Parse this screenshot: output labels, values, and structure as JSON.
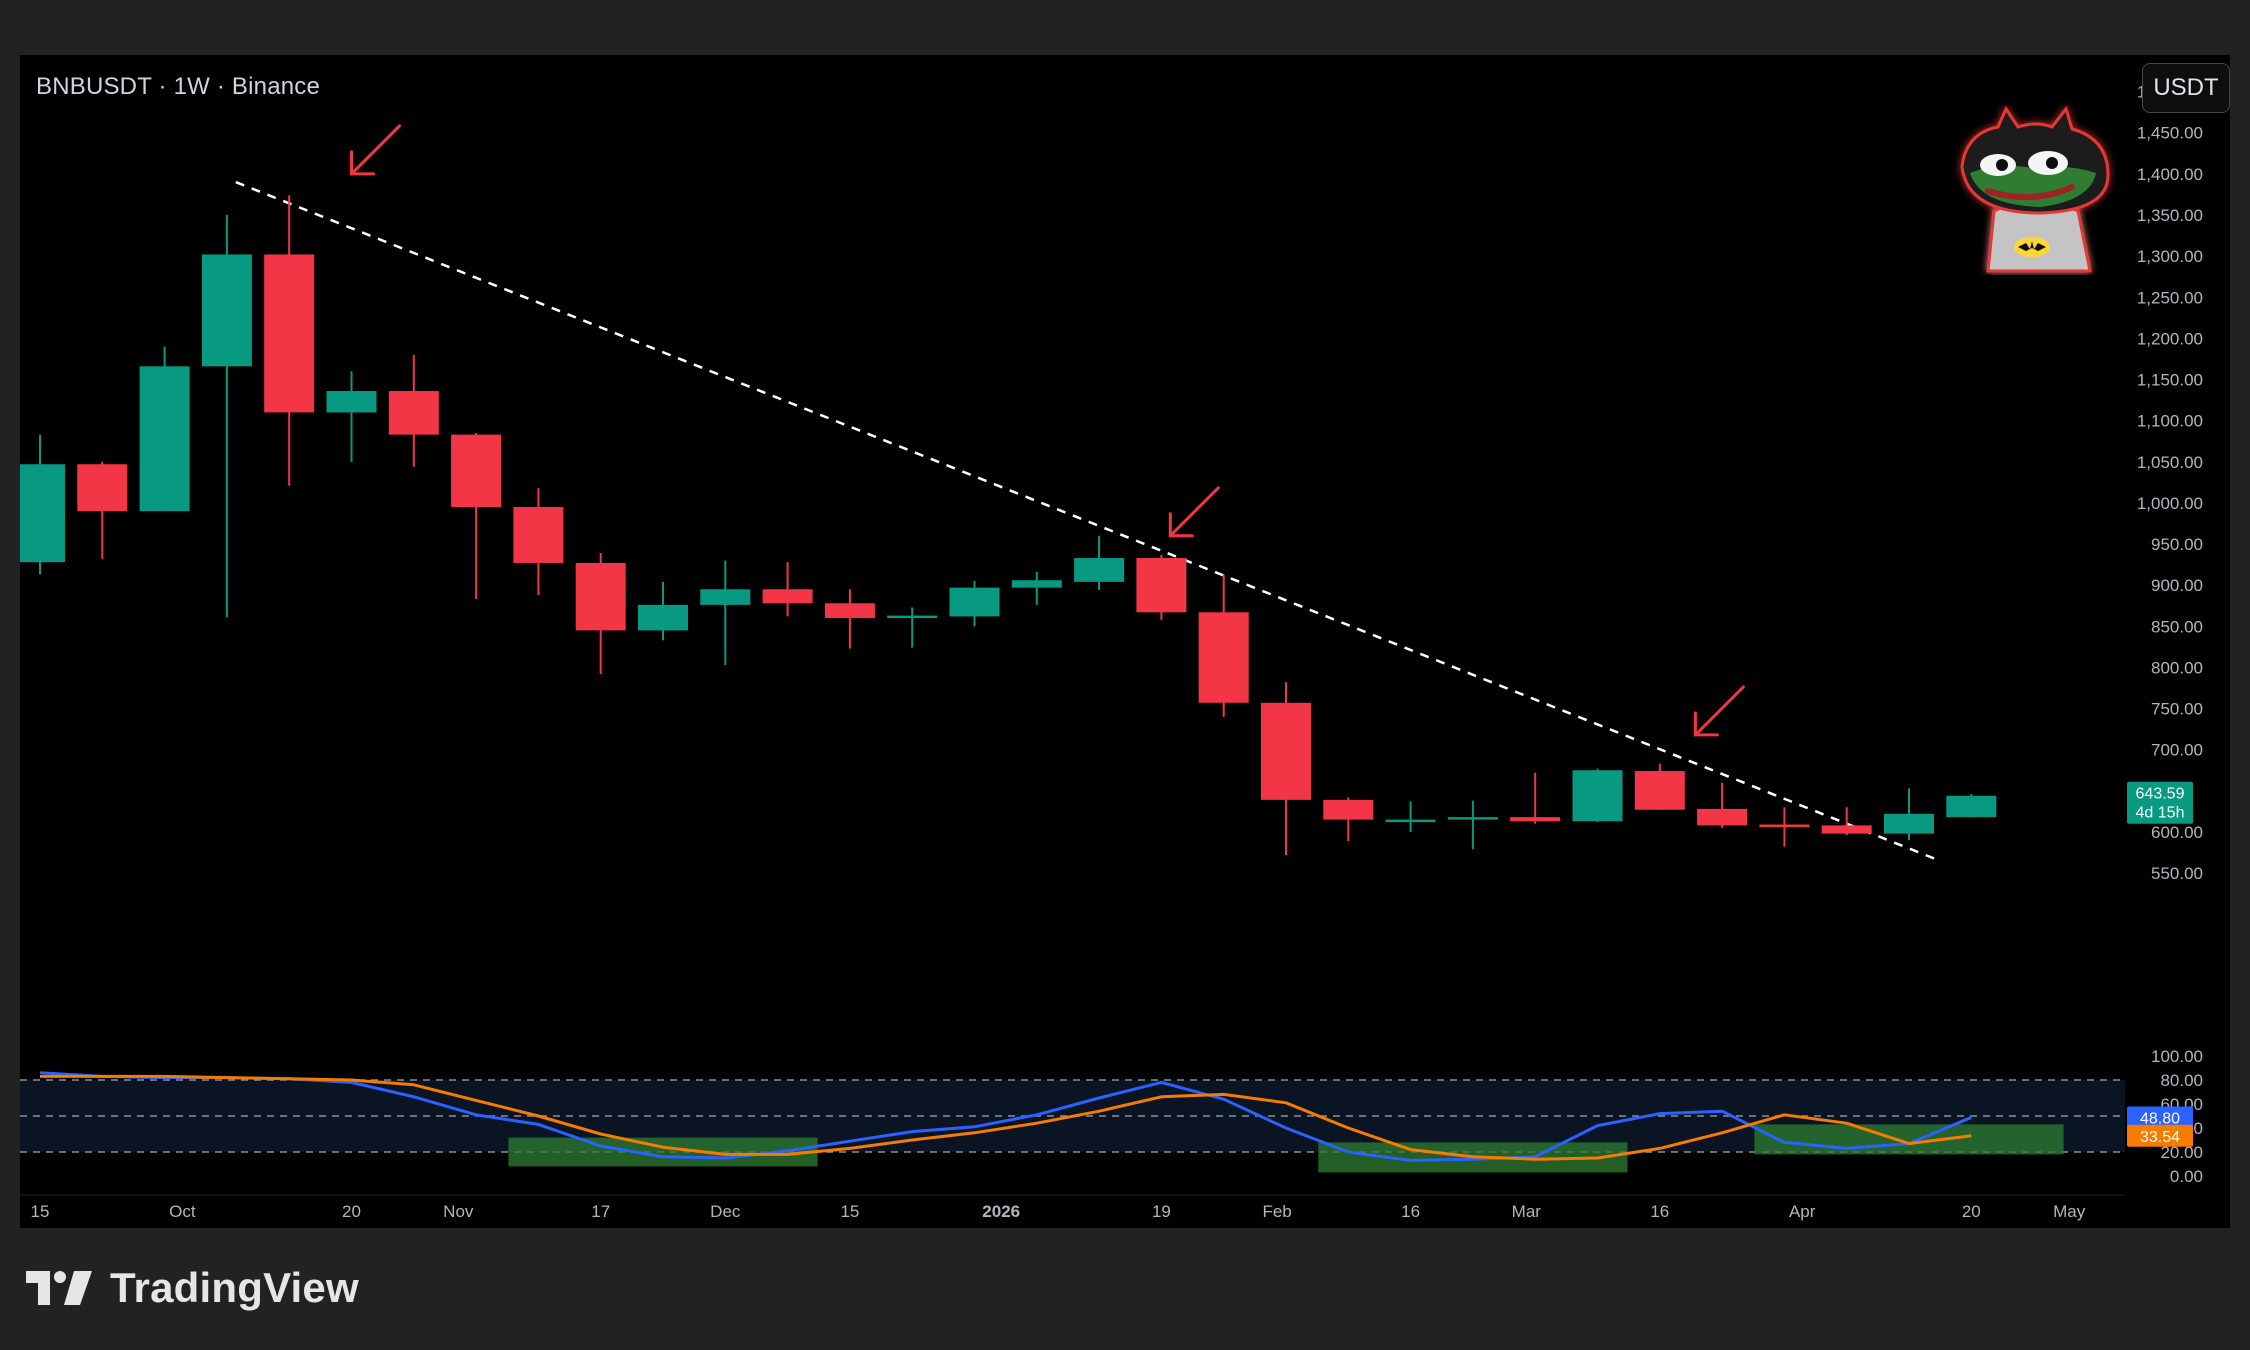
{
  "header": {
    "title": "BNBUSDT · 1W · Binance",
    "unit_button": "USDT"
  },
  "footer": {
    "brand": "TradingView"
  },
  "colors": {
    "up": "#089981",
    "down": "#f23645",
    "k_line": "#2962ff",
    "d_line": "#f57c00",
    "trendline": "#ffffff",
    "arrow": "#f23645",
    "highlight": "#2e7d32"
  },
  "icons": [
    "tradingview-logo-icon",
    "batman-pepe-avatar-icon",
    "red-arrow-icon"
  ],
  "chart_data": [
    {
      "type": "candlestick",
      "symbol": "BNBUSDT",
      "interval": "1W",
      "exchange": "Binance",
      "x_tick_labels": [
        "15",
        "Oct",
        "20",
        "Nov",
        "17",
        "Dec",
        "15",
        "2026",
        "19",
        "Feb",
        "16",
        "Mar",
        "16",
        "Apr",
        "20",
        "May"
      ],
      "y_tick_labels": [
        "1,500.00",
        "1,450.00",
        "1,400.00",
        "1,350.00",
        "1,300.00",
        "1,250.00",
        "1,200.00",
        "1,150.00",
        "1,100.00",
        "1,050.00",
        "1,000.00",
        "950.00",
        "900.00",
        "850.00",
        "800.00",
        "750.00",
        "700.00",
        "600.00",
        "550.00"
      ],
      "y_ticks": [
        1500,
        1450,
        1400,
        1350,
        1300,
        1250,
        1200,
        1150,
        1100,
        1050,
        1000,
        950,
        900,
        850,
        800,
        750,
        700,
        600,
        550
      ],
      "ylim": [
        520,
        1545
      ],
      "candles": [
        {
          "t": "2025-09-15",
          "o": 928,
          "h": 1083,
          "l": 913,
          "c": 1047
        },
        {
          "t": "2025-09-22",
          "o": 1047,
          "h": 1050,
          "l": 932,
          "c": 990
        },
        {
          "t": "2025-09-29",
          "o": 990,
          "h": 1190,
          "l": 990,
          "c": 1166
        },
        {
          "t": "2025-10-06",
          "o": 1166,
          "h": 1350,
          "l": 861,
          "c": 1302
        },
        {
          "t": "2025-10-13",
          "o": 1302,
          "h": 1374,
          "l": 1021,
          "c": 1110
        },
        {
          "t": "2025-10-20",
          "o": 1110,
          "h": 1160,
          "l": 1050,
          "c": 1136
        },
        {
          "t": "2025-10-27",
          "o": 1136,
          "h": 1180,
          "l": 1044,
          "c": 1083
        },
        {
          "t": "2025-11-03",
          "o": 1083,
          "h": 1085,
          "l": 883,
          "c": 995
        },
        {
          "t": "2025-11-10",
          "o": 995,
          "h": 1018,
          "l": 888,
          "c": 927
        },
        {
          "t": "2025-11-17",
          "o": 927,
          "h": 939,
          "l": 792,
          "c": 845
        },
        {
          "t": "2025-11-24",
          "o": 845,
          "h": 904,
          "l": 833,
          "c": 876
        },
        {
          "t": "2025-12-01",
          "o": 876,
          "h": 930,
          "l": 803,
          "c": 895
        },
        {
          "t": "2025-12-08",
          "o": 895,
          "h": 928,
          "l": 862,
          "c": 878
        },
        {
          "t": "2025-12-15",
          "o": 878,
          "h": 895,
          "l": 823,
          "c": 860
        },
        {
          "t": "2025-12-22",
          "o": 860,
          "h": 873,
          "l": 824,
          "c": 863
        },
        {
          "t": "2025-12-29",
          "o": 862,
          "h": 905,
          "l": 850,
          "c": 897
        },
        {
          "t": "2026-01-05",
          "o": 897,
          "h": 916,
          "l": 876,
          "c": 906
        },
        {
          "t": "2026-01-12",
          "o": 904,
          "h": 960,
          "l": 894,
          "c": 933
        },
        {
          "t": "2026-01-19",
          "o": 933,
          "h": 937,
          "l": 858,
          "c": 867
        },
        {
          "t": "2026-01-26",
          "o": 867,
          "h": 913,
          "l": 740,
          "c": 757
        },
        {
          "t": "2026-02-02",
          "o": 757,
          "h": 782,
          "l": 572,
          "c": 639
        },
        {
          "t": "2026-02-09",
          "o": 639,
          "h": 642,
          "l": 589,
          "c": 615
        },
        {
          "t": "2026-02-16",
          "o": 615,
          "h": 637,
          "l": 600,
          "c": 615
        },
        {
          "t": "2026-02-23",
          "o": 616,
          "h": 638,
          "l": 579,
          "c": 618
        },
        {
          "t": "2026-03-02",
          "o": 618,
          "h": 672,
          "l": 610,
          "c": 613
        },
        {
          "t": "2026-03-09",
          "o": 613,
          "h": 677,
          "l": 612,
          "c": 675
        },
        {
          "t": "2026-03-16",
          "o": 674,
          "h": 683,
          "l": 627,
          "c": 627
        },
        {
          "t": "2026-03-23",
          "o": 628,
          "h": 660,
          "l": 605,
          "c": 608
        },
        {
          "t": "2026-03-30",
          "o": 609,
          "h": 630,
          "l": 582,
          "c": 608
        },
        {
          "t": "2026-04-06",
          "o": 608,
          "h": 630,
          "l": 596,
          "c": 598
        },
        {
          "t": "2026-04-13",
          "o": 598,
          "h": 653,
          "l": 590,
          "c": 622
        },
        {
          "t": "2026-04-20",
          "o": 618,
          "h": 646,
          "l": 618,
          "c": 644
        }
      ],
      "last_price_label": "643.59",
      "countdown_label": "4d 15h",
      "trendline": {
        "from": {
          "t": "2025-10-07",
          "price": 1390
        },
        "to": {
          "t": "2026-04-16",
          "price": 567
        },
        "style": "dashed"
      },
      "annotations": [
        {
          "type": "arrow",
          "t": "2025-10-20",
          "price": 1400
        },
        {
          "type": "arrow",
          "t": "2026-01-20",
          "price": 960
        },
        {
          "type": "arrow",
          "t": "2026-03-20",
          "price": 718
        }
      ]
    },
    {
      "type": "line",
      "name": "Stochastic RSI",
      "y_tick_labels": [
        "100.00",
        "80.00",
        "60.00",
        "40.00",
        "20.00",
        "0.00"
      ],
      "y_ticks": [
        100,
        80,
        60,
        40,
        20,
        0
      ],
      "ylim": [
        -5,
        105
      ],
      "band": [
        20,
        80
      ],
      "midline": 50,
      "series": [
        {
          "values": [
            86,
            83,
            82,
            82,
            81,
            78,
            66,
            51,
            43,
            25,
            16,
            15,
            21,
            29,
            37,
            41,
            51,
            65,
            78,
            64,
            40,
            20,
            13,
            14,
            16,
            42,
            52,
            54,
            28,
            23,
            27,
            48.8
          ],
          "label": "48.80"
        },
        {
          "values": [
            83,
            83,
            83,
            82,
            81,
            80,
            76,
            63,
            50,
            35,
            24,
            18,
            18,
            23,
            30,
            36,
            44,
            54,
            66,
            68,
            61,
            40,
            22,
            16,
            14,
            15,
            23,
            36,
            51,
            44,
            27,
            33.54
          ],
          "label": "33.54"
        }
      ],
      "highlight_zones": [
        {
          "from": "2025-11-10",
          "to": "2025-12-08",
          "y": [
            8,
            32
          ]
        },
        {
          "from": "2026-02-09",
          "to": "2026-03-09",
          "y": [
            3,
            28
          ]
        },
        {
          "from": "2026-03-30",
          "to": "2026-04-27",
          "y": [
            18,
            43
          ]
        }
      ]
    }
  ]
}
